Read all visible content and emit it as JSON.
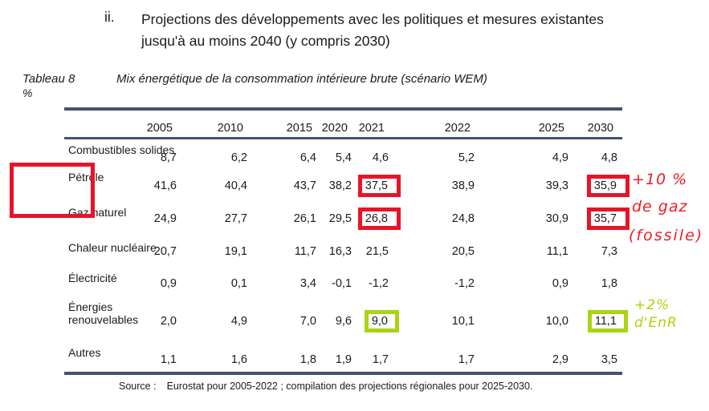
{
  "heading": {
    "numeral": "ii.",
    "line1": "Projections des développements avec les politiques et mesures existantes",
    "line2": "jusqu'à au moins 2040 (y compris 2030)"
  },
  "caption": {
    "label": "Tableau 8",
    "title": "Mix énergétique de la consommation intérieure brute (scénario WEM)",
    "unit": "%"
  },
  "table": {
    "years": [
      "2005",
      "2010",
      "2015",
      "2020",
      "2021",
      "2022",
      "2025",
      "2030"
    ],
    "rows": [
      {
        "label": "Combustibles solides",
        "values": [
          "8,7",
          "6,2",
          "6,4",
          "5,4",
          "4,6",
          "5,2",
          "4,9",
          "4,8"
        ]
      },
      {
        "label": "Pétrole",
        "values": [
          "41,6",
          "40,4",
          "43,7",
          "38,2",
          "37,5",
          "38,9",
          "39,3",
          "35,9"
        ],
        "highlighted": {
          "2021": "red",
          "2030": "red"
        }
      },
      {
        "label": "Gaz naturel",
        "values": [
          "24,9",
          "27,7",
          "26,1",
          "29,5",
          "26,8",
          "24,8",
          "30,9",
          "35,7"
        ],
        "highlighted": {
          "2021": "red",
          "2030": "red"
        }
      },
      {
        "label": "Chaleur nucléaire",
        "values": [
          "20,7",
          "19,1",
          "11,7",
          "16,3",
          "21,5",
          "20,5",
          "11,1",
          "7,3"
        ]
      },
      {
        "label": "Électricité",
        "values": [
          "0,9",
          "0,1",
          "3,4",
          "-0,1",
          "-1,2",
          "-1,2",
          "0,9",
          "1,8"
        ]
      },
      {
        "label": "Énergies renouvelables",
        "values": [
          "2,0",
          "4,9",
          "7,0",
          "9,6",
          "9,0",
          "10,1",
          "10,0",
          "11,1"
        ],
        "highlighted": {
          "2021": "green",
          "2030": "green"
        }
      },
      {
        "label": "Autres",
        "values": [
          "1,1",
          "1,6",
          "1,8",
          "1,9",
          "1,7",
          "1,7",
          "2,9",
          "3,5"
        ]
      }
    ]
  },
  "annotations": {
    "gas": {
      "line1": "+10 %",
      "line2": "de gaz",
      "line3": "(fossile)",
      "color": "#ee1c25"
    },
    "enr": {
      "line1": "+2%",
      "line2": "d'EnR",
      "color": "#a9d408"
    }
  },
  "source": {
    "label": "Source :",
    "text": "Eurostat pour 2005-2022 ; compilation des projections régionales pour 2025-2030."
  },
  "colors": {
    "rule": "#44546a",
    "highlight_red": "#e8132a",
    "highlight_green": "#a9d414"
  }
}
